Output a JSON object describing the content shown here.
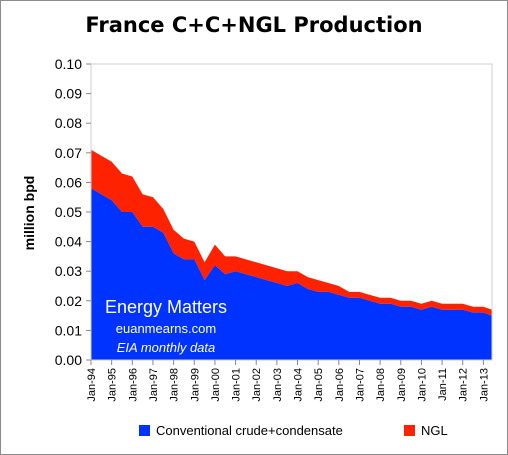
{
  "chart_data": {
    "type": "area",
    "stacked": true,
    "title": "France C+C+NGL Production",
    "ylabel": "million bpd",
    "xlabel": "",
    "ylim": [
      0,
      0.1
    ],
    "yticks": [
      0.0,
      0.01,
      0.02,
      0.03,
      0.04,
      0.05,
      0.06,
      0.07,
      0.08,
      0.09,
      0.1
    ],
    "ytick_labels": [
      "0.00",
      "0.01",
      "0.02",
      "0.03",
      "0.04",
      "0.05",
      "0.06",
      "0.07",
      "0.08",
      "0.09",
      "0.10"
    ],
    "xlim": [
      "Jan-94",
      "Jun-13"
    ],
    "xtick_labels": [
      "Jan-94",
      "Jan-95",
      "Jan-96",
      "Jan-97",
      "Jan-98",
      "Jan-99",
      "Jan-00",
      "Jan-01",
      "Jan-02",
      "Jan-03",
      "Jan-04",
      "Jan-05",
      "Jan-06",
      "Jan-07",
      "Jan-08",
      "Jan-09",
      "Jan-10",
      "Jan-11",
      "Jan-12",
      "Jan-13"
    ],
    "grid": false,
    "legend_position": "bottom",
    "x": [
      "Jan-94",
      "Jul-94",
      "Jan-95",
      "Jul-95",
      "Jan-96",
      "Jul-96",
      "Jan-97",
      "Jul-97",
      "Jan-98",
      "Jul-98",
      "Jan-99",
      "Jul-99",
      "Jan-00",
      "Jul-00",
      "Jan-01",
      "Jul-01",
      "Jan-02",
      "Jul-02",
      "Jan-03",
      "Jul-03",
      "Jan-04",
      "Jul-04",
      "Jan-05",
      "Jul-05",
      "Jan-06",
      "Jul-06",
      "Jan-07",
      "Jul-07",
      "Jan-08",
      "Jul-08",
      "Jan-09",
      "Jul-09",
      "Jan-10",
      "Jul-10",
      "Jan-11",
      "Jul-11",
      "Jan-12",
      "Jul-12",
      "Jan-13",
      "Jun-13"
    ],
    "series": [
      {
        "name": "Conventional crude+condensate",
        "color": "#0033ff",
        "values": [
          0.058,
          0.056,
          0.054,
          0.05,
          0.05,
          0.045,
          0.045,
          0.043,
          0.036,
          0.034,
          0.034,
          0.027,
          0.032,
          0.029,
          0.03,
          0.029,
          0.028,
          0.027,
          0.026,
          0.025,
          0.026,
          0.024,
          0.023,
          0.023,
          0.022,
          0.021,
          0.021,
          0.02,
          0.019,
          0.019,
          0.018,
          0.018,
          0.017,
          0.018,
          0.017,
          0.017,
          0.017,
          0.016,
          0.016,
          0.015
        ]
      },
      {
        "name": "NGL",
        "color": "#ff2200",
        "values": [
          0.013,
          0.013,
          0.013,
          0.013,
          0.012,
          0.011,
          0.01,
          0.008,
          0.008,
          0.007,
          0.006,
          0.006,
          0.007,
          0.006,
          0.005,
          0.005,
          0.005,
          0.005,
          0.005,
          0.005,
          0.004,
          0.004,
          0.004,
          0.003,
          0.003,
          0.002,
          0.002,
          0.002,
          0.002,
          0.002,
          0.002,
          0.002,
          0.002,
          0.002,
          0.002,
          0.002,
          0.002,
          0.002,
          0.002,
          0.002
        ]
      }
    ]
  },
  "watermark": {
    "brand": "Energy Matters",
    "site": "euanmearns.com",
    "source": "EIA monthly data"
  }
}
